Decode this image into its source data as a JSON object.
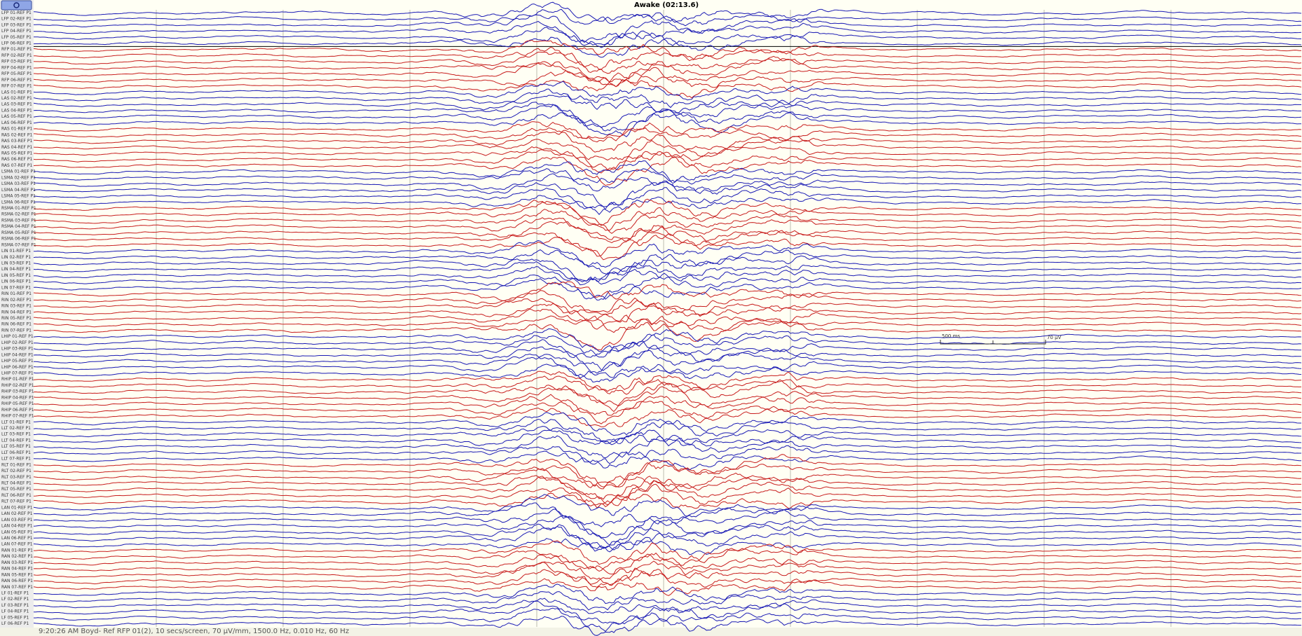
{
  "title": "Awake (02:13.6)",
  "status": "9:20:26 AM Boyd- Ref RFP 01(2), 10 secs/screen, 70 µV/mm, 1500.0 Hz, 0.010 Hz, 60 Hz",
  "calibration": {
    "time": "500 ms",
    "amplitude": "70 µV"
  },
  "groups": [
    {
      "color": "#1a1ab4",
      "labels": [
        "LFP 01-REF P1",
        "LFP 02-REF P1",
        "LFP 03-REF P1",
        "LFP 04-REF P1",
        "LFP 05-REF P1",
        "LFP 06-REF P1"
      ]
    },
    {
      "color": "#c81e1e",
      "labels": [
        "RFP 01-REF P1",
        "RFP 02-REF P1",
        "RFP 03-REF P1",
        "RFP 04-REF P1",
        "RFP 05-REF P1",
        "RFP 06-REF P1",
        "RFP 07-REF P1"
      ]
    },
    {
      "color": "#1a1ab4",
      "labels": [
        "LAS 01-REF P1",
        "LAS 02-REF P1",
        "LAS 03-REF P1",
        "LAS 04-REF P1",
        "LAS 05-REF P1",
        "LAS 06-REF P1"
      ]
    },
    {
      "color": "#c81e1e",
      "labels": [
        "RAS 01-REF P1",
        "RAS 02-REF P1",
        "RAS 03-REF P1",
        "RAS 04-REF P1",
        "RAS 05-REF P1",
        "RAS 06-REF P1",
        "RAS 07-REF P1"
      ]
    },
    {
      "color": "#1a1ab4",
      "labels": [
        "LSMA 01-REF P1",
        "LSMA 02-REF P1",
        "LSMA 03-REF P1",
        "LSMA 04-REF P1",
        "LSMA 05-REF P1",
        "LSMA 06-REF P1"
      ]
    },
    {
      "color": "#c81e1e",
      "labels": [
        "RSMA 01-REF P1",
        "RSMA 02-REF P1",
        "RSMA 03-REF P1",
        "RSMA 04-REF P1",
        "RSMA 05-REF P1",
        "RSMA 06-REF P1",
        "RSMA 07-REF P1"
      ]
    },
    {
      "color": "#1a1ab4",
      "labels": [
        "LIN 01-REF P1",
        "LIN 02-REF P1",
        "LIN 03-REF P1",
        "LIN 04-REF P1",
        "LIN 05-REF P1",
        "LIN 06-REF P1",
        "LIN 07-REF P1"
      ]
    },
    {
      "color": "#c81e1e",
      "labels": [
        "RIN 01-REF P1",
        "RIN 02-REF P1",
        "RIN 03-REF P1",
        "RIN 04-REF P1",
        "RIN 05-REF P1",
        "RIN 06-REF P1",
        "RIN 07-REF P1"
      ]
    },
    {
      "color": "#1a1ab4",
      "labels": [
        "LHIP 01-REF P1",
        "LHIP 02-REF P1",
        "LHIP 03-REF P1",
        "LHIP 04-REF P1",
        "LHIP 05-REF P1",
        "LHIP 06-REF P1",
        "LHIP 07-REF P1"
      ]
    },
    {
      "color": "#c81e1e",
      "labels": [
        "RHIP 01-REF P1",
        "RHIP 02-REF P1",
        "RHIP 03-REF P1",
        "RHIP 04-REF P1",
        "RHIP 05-REF P1",
        "RHIP 06-REF P1",
        "RHIP 07-REF P1"
      ]
    },
    {
      "color": "#1a1ab4",
      "labels": [
        "LLT 01-REF P1",
        "LLT 02-REF P1",
        "LLT 03-REF P1",
        "LLT 04-REF P1",
        "LLT 05-REF P1",
        "LLT 06-REF P1",
        "LLT 07-REF P1"
      ]
    },
    {
      "color": "#c81e1e",
      "labels": [
        "RLT 01-REF P1",
        "RLT 02-REF P1",
        "RLT 03-REF P1",
        "RLT 04-REF P1",
        "RLT 05-REF P1",
        "RLT 06-REF P1",
        "RLT 07-REF P1"
      ]
    },
    {
      "color": "#1a1ab4",
      "labels": [
        "LAN 01-REF P1",
        "LAN 02-REF P1",
        "LAN 03-REF P1",
        "LAN 04-REF P1",
        "LAN 05-REF P1",
        "LAN 06-REF P1",
        "LAN 07-REF P1"
      ]
    },
    {
      "color": "#c81e1e",
      "labels": [
        "RAN 01-REF P1",
        "RAN 02-REF P1",
        "RAN 03-REF P1",
        "RAN 04-REF P1",
        "RAN 05-REF P1",
        "RAN 06-REF P1",
        "RAN 07-REF P1"
      ]
    },
    {
      "color": "#1a1ab4",
      "labels": [
        "LF 01-REF P1",
        "LF 02-REF P1",
        "LF 03-REF P1",
        "LF 04-REF P1",
        "LF 05-REF P1",
        "LF 06-REF P1"
      ]
    }
  ]
}
